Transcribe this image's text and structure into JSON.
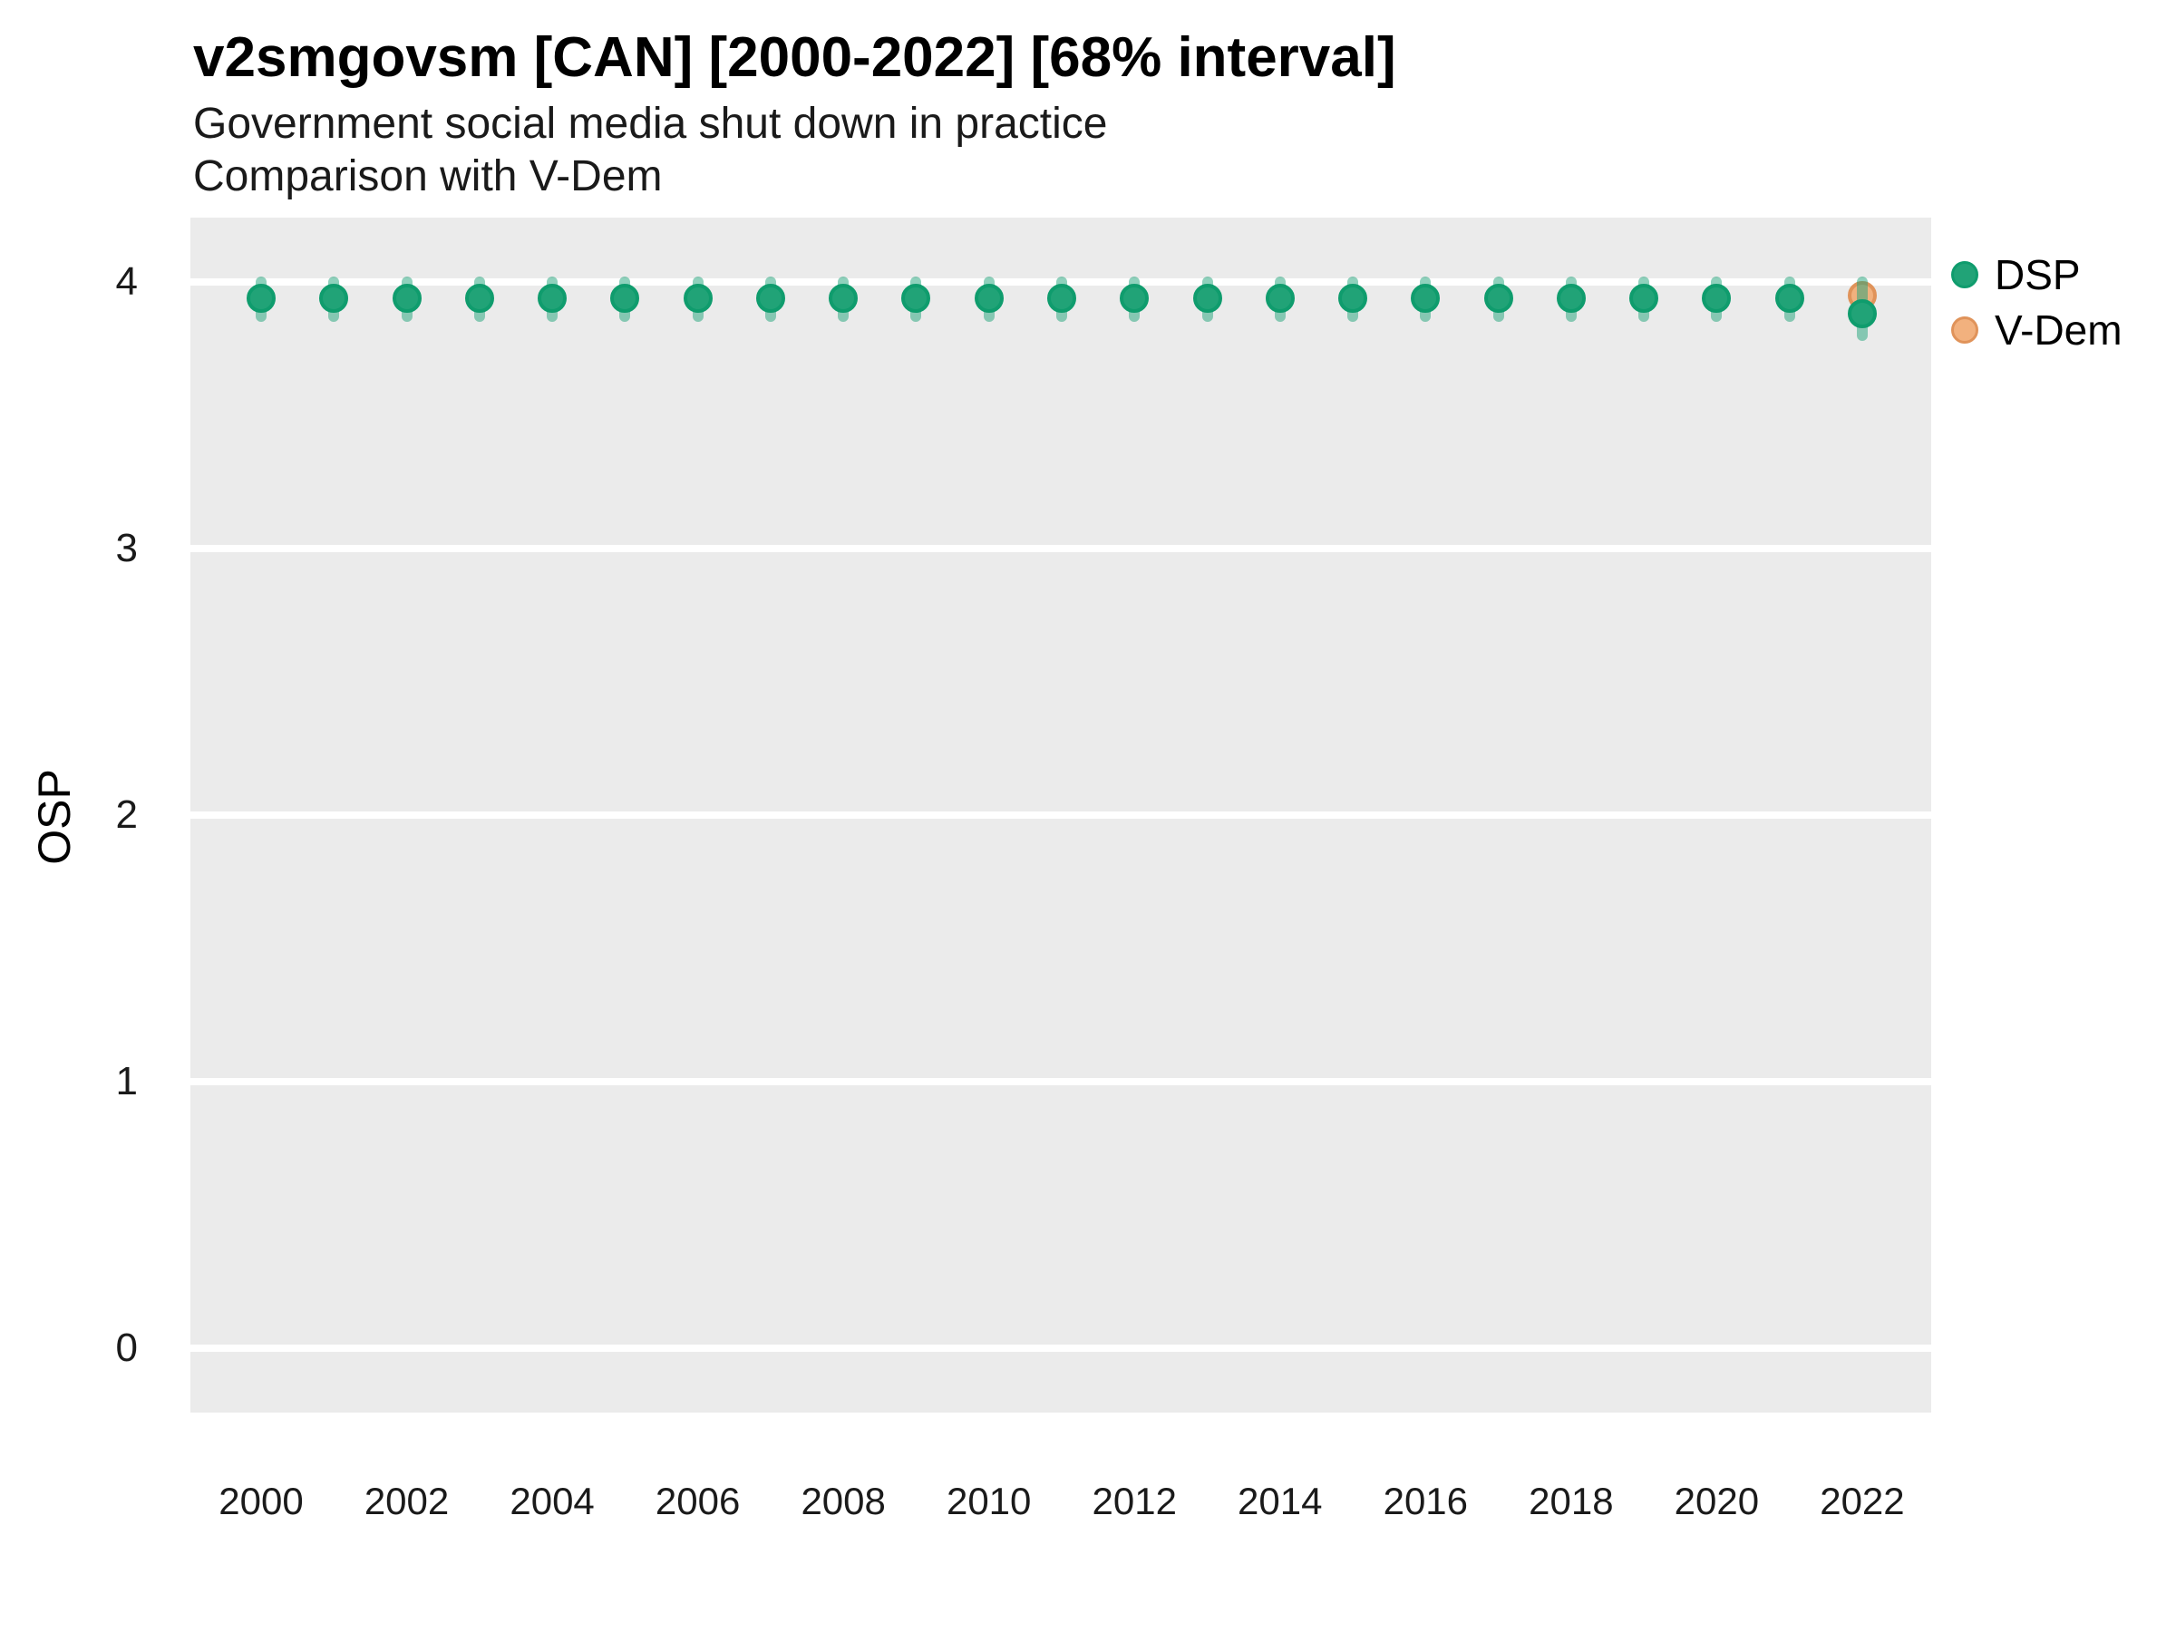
{
  "header": {
    "title": "v2smgovsm [CAN] [2000-2022] [68% interval]",
    "subtitle_line1": "Government social media shut down in practice",
    "subtitle_line2": "Comparison with V-Dem"
  },
  "axes": {
    "y_label": "OSP",
    "y_ticks": [
      0,
      1,
      2,
      3,
      4
    ],
    "x_ticks": [
      2000,
      2002,
      2004,
      2006,
      2008,
      2010,
      2012,
      2014,
      2016,
      2018,
      2020,
      2022
    ]
  },
  "legend": {
    "items": [
      {
        "label": "DSP",
        "fill": "#21a377",
        "stroke": "#0f9c6d"
      },
      {
        "label": "V-Dem",
        "fill": "#f2b17e",
        "stroke": "#e0935a"
      }
    ]
  },
  "colors": {
    "panel_background": "#ebebeb",
    "gridline": "#ffffff",
    "dsp_fill": "#21a377",
    "dsp_stroke": "#0f9c6d",
    "dsp_interval": "rgba(31,164,122,0.5)",
    "vdem_fill": "#f2b17e",
    "vdem_stroke": "#e0935a"
  },
  "chart_data": {
    "type": "scatter",
    "title": "v2smgovsm [CAN] [2000-2022] [68% interval]",
    "subtitle": "Government social media shut down in practice — Comparison with V-Dem",
    "xlabel": "",
    "ylabel": "OSP",
    "ylim": [
      -0.25,
      4.25
    ],
    "xlim": [
      1999,
      2023
    ],
    "grid": "major-horizontal-only",
    "legend_position": "right",
    "interval_level": "68%",
    "series": [
      {
        "name": "DSP",
        "points": [
          {
            "year": 2000,
            "est": 3.94,
            "lo": 3.87,
            "hi": 4.0
          },
          {
            "year": 2001,
            "est": 3.94,
            "lo": 3.87,
            "hi": 4.0
          },
          {
            "year": 2002,
            "est": 3.94,
            "lo": 3.87,
            "hi": 4.0
          },
          {
            "year": 2003,
            "est": 3.94,
            "lo": 3.87,
            "hi": 4.0
          },
          {
            "year": 2004,
            "est": 3.94,
            "lo": 3.87,
            "hi": 4.0
          },
          {
            "year": 2005,
            "est": 3.94,
            "lo": 3.87,
            "hi": 4.0
          },
          {
            "year": 2006,
            "est": 3.94,
            "lo": 3.87,
            "hi": 4.0
          },
          {
            "year": 2007,
            "est": 3.94,
            "lo": 3.87,
            "hi": 4.0
          },
          {
            "year": 2008,
            "est": 3.94,
            "lo": 3.87,
            "hi": 4.0
          },
          {
            "year": 2009,
            "est": 3.94,
            "lo": 3.87,
            "hi": 4.0
          },
          {
            "year": 2010,
            "est": 3.94,
            "lo": 3.87,
            "hi": 4.0
          },
          {
            "year": 2011,
            "est": 3.94,
            "lo": 3.87,
            "hi": 4.0
          },
          {
            "year": 2012,
            "est": 3.94,
            "lo": 3.87,
            "hi": 4.0
          },
          {
            "year": 2013,
            "est": 3.94,
            "lo": 3.87,
            "hi": 4.0
          },
          {
            "year": 2014,
            "est": 3.94,
            "lo": 3.87,
            "hi": 4.0
          },
          {
            "year": 2015,
            "est": 3.94,
            "lo": 3.87,
            "hi": 4.0
          },
          {
            "year": 2016,
            "est": 3.94,
            "lo": 3.87,
            "hi": 4.0
          },
          {
            "year": 2017,
            "est": 3.94,
            "lo": 3.87,
            "hi": 4.0
          },
          {
            "year": 2018,
            "est": 3.94,
            "lo": 3.87,
            "hi": 4.0
          },
          {
            "year": 2019,
            "est": 3.94,
            "lo": 3.87,
            "hi": 4.0
          },
          {
            "year": 2020,
            "est": 3.94,
            "lo": 3.87,
            "hi": 4.0
          },
          {
            "year": 2021,
            "est": 3.94,
            "lo": 3.87,
            "hi": 4.0
          },
          {
            "year": 2022,
            "est": 3.88,
            "lo": 3.8,
            "hi": 4.0
          }
        ]
      },
      {
        "name": "V-Dem",
        "points": [
          {
            "year": 2022,
            "est": 3.95,
            "lo": 3.95,
            "hi": 3.95
          }
        ]
      }
    ]
  }
}
